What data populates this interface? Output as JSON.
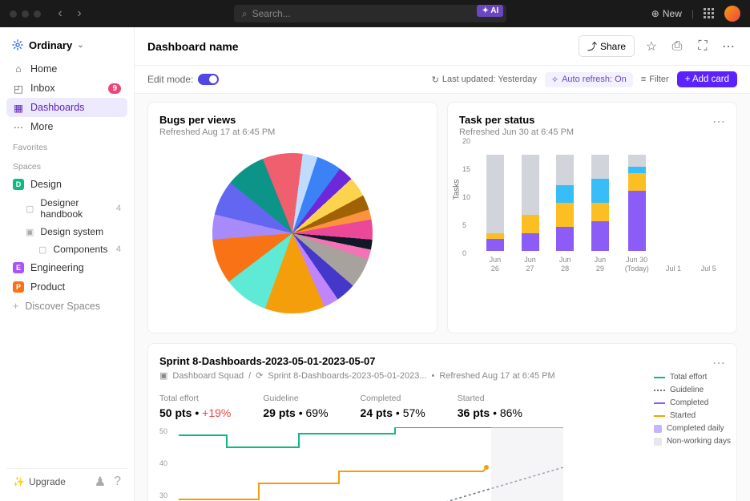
{
  "topbar": {
    "search_placeholder": "Search...",
    "ai_label": "AI",
    "new_label": "New"
  },
  "brand": "Ordinary",
  "nav": {
    "home": "Home",
    "inbox": "Inbox",
    "inbox_badge": "9",
    "dashboards": "Dashboards",
    "more": "More"
  },
  "sections": {
    "favorites": "Favorites",
    "spaces": "Spaces"
  },
  "spaces": {
    "design": "Design",
    "design_color": "#10b981",
    "designer_handbook": "Designer handbook",
    "dh_count": "4",
    "design_system": "Design system",
    "components": "Components",
    "comp_count": "4",
    "engineering": "Engineering",
    "eng_color": "#a855f7",
    "product": "Product",
    "prod_color": "#f97316",
    "discover": "Discover Spaces"
  },
  "upgrade": "Upgrade",
  "header": {
    "title": "Dashboard name",
    "share": "Share"
  },
  "toolbar": {
    "edit_mode": "Edit mode:",
    "last_updated": "Last updated: Yesterday",
    "auto_refresh": "Auto refresh: On",
    "filter": "Filter",
    "add_card": "+ Add card"
  },
  "bugs_card": {
    "title": "Bugs per views",
    "sub": "Refreshed Aug 17 at 6:45 PM",
    "slices": [
      {
        "v": 9,
        "c": "#5eead4"
      },
      {
        "v": 9,
        "c": "#f97316"
      },
      {
        "v": 5,
        "c": "#a78bfa"
      },
      {
        "v": 7,
        "c": "#6366f1"
      },
      {
        "v": 8,
        "c": "#0d9488"
      },
      {
        "v": 8,
        "c": "#ef5f6d"
      },
      {
        "v": 3,
        "c": "#bfdbfe"
      },
      {
        "v": 5,
        "c": "#3b82f6"
      },
      {
        "v": 3,
        "c": "#6d28d9"
      },
      {
        "v": 4,
        "c": "#fcd34d"
      },
      {
        "v": 3,
        "c": "#a16207"
      },
      {
        "v": 2,
        "c": "#fb923c"
      },
      {
        "v": 4,
        "c": "#ec4899"
      },
      {
        "v": 2,
        "c": "#111827"
      },
      {
        "v": 2,
        "c": "#f472b6"
      },
      {
        "v": 6,
        "c": "#a8a29e"
      },
      {
        "v": 4,
        "c": "#4338ca"
      },
      {
        "v": 3,
        "c": "#c084fc"
      },
      {
        "v": 12,
        "c": "#f59e0b"
      }
    ]
  },
  "tasks_card": {
    "title": "Task per status",
    "sub": "Refreshed Jun 30 at 6:45 PM",
    "ylabel": "Tasks",
    "ymax": 20,
    "ytick": 5,
    "colors": {
      "done": "#8b5cf6",
      "progress": "#fbbf24",
      "review": "#38bdf8",
      "todo": "#d1d5db"
    },
    "bars": [
      {
        "label": "Jun 26",
        "done": 2,
        "progress": 1,
        "review": 0,
        "todo": 13
      },
      {
        "label": "Jun 27",
        "done": 3,
        "progress": 3,
        "review": 0,
        "todo": 10
      },
      {
        "label": "Jun 28",
        "done": 4,
        "progress": 4,
        "review": 3,
        "todo": 5
      },
      {
        "label": "Jun 29",
        "done": 5,
        "progress": 3,
        "review": 4,
        "todo": 4
      },
      {
        "label": "Jun 30",
        "sublabel": "(Today)",
        "done": 10,
        "progress": 3,
        "review": 1,
        "todo": 2
      },
      {
        "label": "Jul 1"
      },
      {
        "label": "Jul 5"
      }
    ]
  },
  "sprint_card": {
    "title": "Sprint 8-Dashboards-2023-05-01-2023-05-07",
    "folder": "Dashboard Squad",
    "sprint": "Sprint 8-Dashboards-2023-05-01-2023...",
    "refreshed": "Refreshed Aug 17 at 6:45 PM",
    "stats": {
      "total": {
        "label": "Total effort",
        "val": "50 pts",
        "extra": "+19%"
      },
      "guideline": {
        "label": "Guideline",
        "val": "29 pts",
        "pct": "69%"
      },
      "completed": {
        "label": "Completed",
        "val": "24 pts",
        "pct": "57%"
      },
      "started": {
        "label": "Started",
        "val": "36 pts",
        "pct": "86%"
      }
    },
    "legend": {
      "total": "Total effort",
      "guideline": "Guideline",
      "completed": "Completed",
      "started": "Started",
      "comp_daily": "Completed daily",
      "non_working": "Non-working days"
    },
    "yticks": [
      "50",
      "40",
      "30"
    ],
    "colors": {
      "total": "#10b981",
      "guideline": "#6b7280",
      "completed": "#8b5cf6",
      "started": "#f59e0b",
      "daily": "#c4b5fd",
      "nw": "#e5e7eb"
    }
  }
}
